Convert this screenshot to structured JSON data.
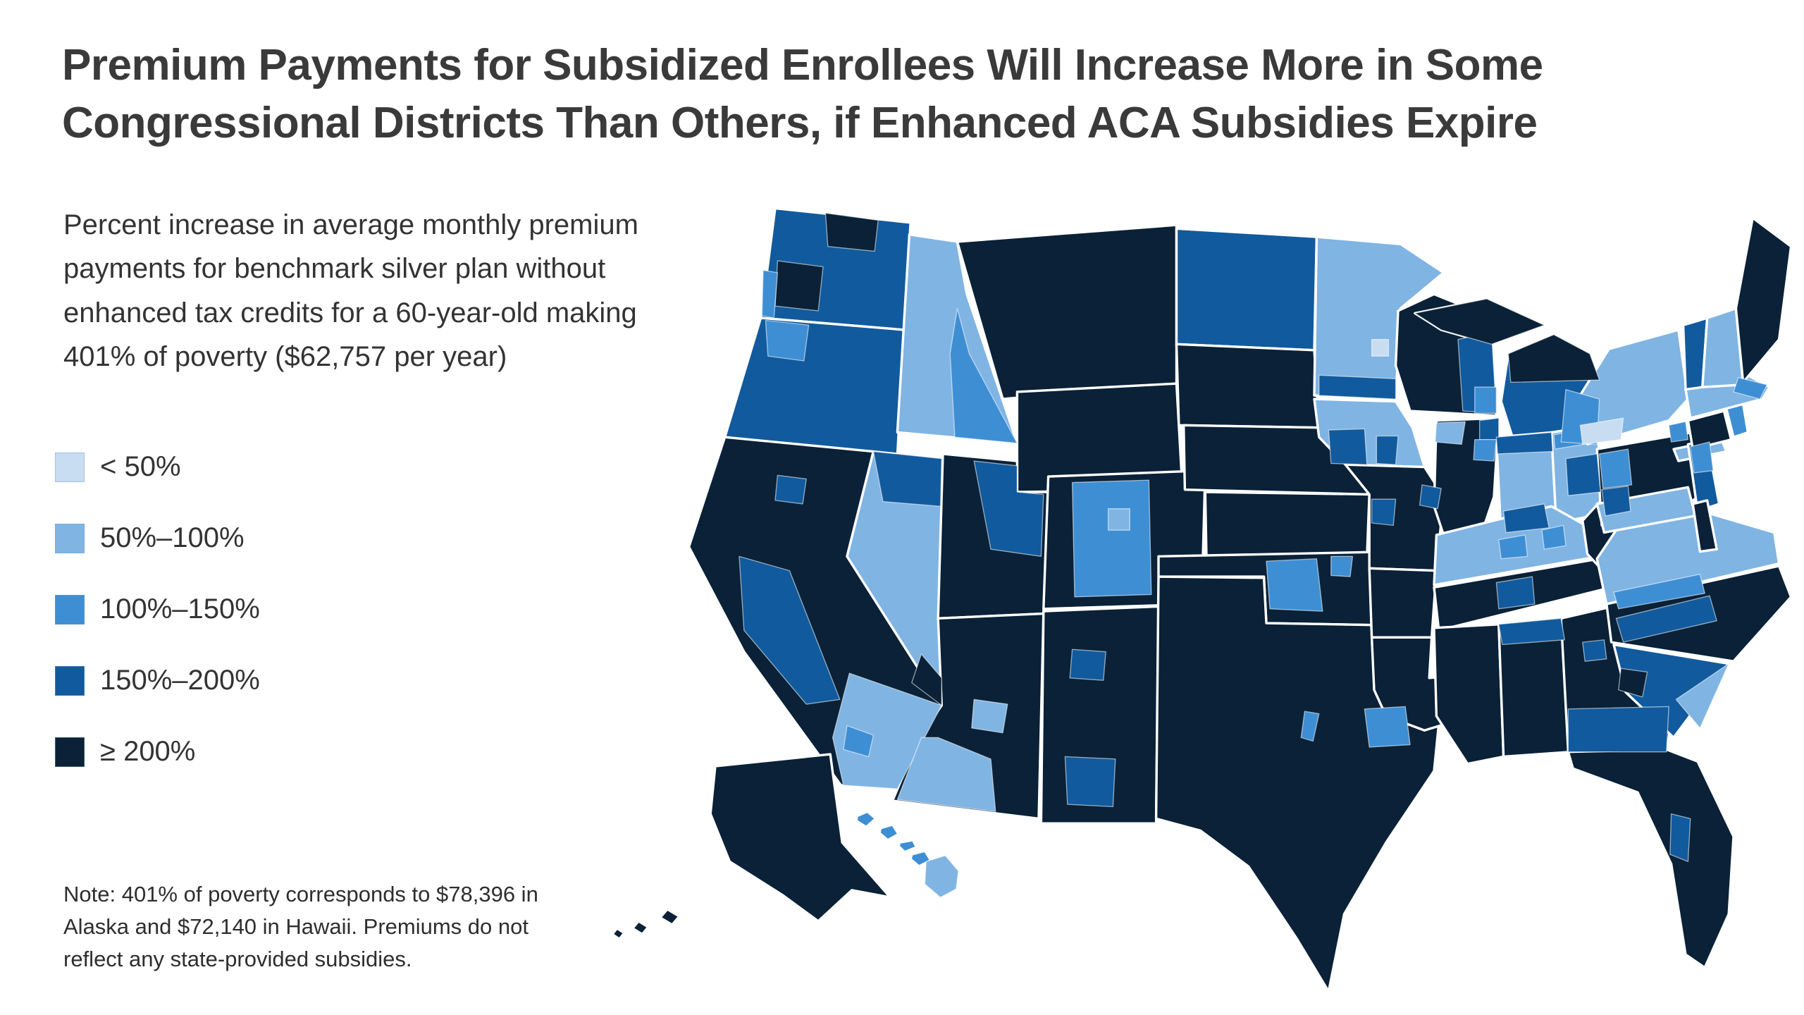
{
  "header": {
    "title_lines": [
      "Premium Payments for Subsidized Enrollees Will Increase More in Some",
      "Congressional Districts Than Others, if Enhanced ACA Subsidies Expire"
    ]
  },
  "subtitle": "Percent increase in average monthly premium payments for benchmark silver plan without enhanced tax credits for a 60-year-old making 401% of poverty ($62,757 per year)",
  "note": "Note: 401% of poverty corresponds to $78,396 in Alaska and $72,140 in Hawaii. Premiums do not reflect any state-provided subsidies.",
  "legend": {
    "items": [
      {
        "label": "< 50%",
        "category": "lt50"
      },
      {
        "label": "50%–100%",
        "category": "50-100"
      },
      {
        "label": "100%–150%",
        "category": "100-150"
      },
      {
        "label": "150%–200%",
        "category": "150-200"
      },
      {
        "label": "≥ 200%",
        "category": "gte200"
      }
    ]
  },
  "map": {
    "category_colors": {
      "lt50": "#c8ddf2",
      "50-100": "#80b4e3",
      "100-150": "#3e8ed4",
      "150-200": "#115a9d",
      "gte200": "#0a2137"
    },
    "states": [
      {
        "abbr": "WA",
        "name": "Washington",
        "category": "150-200"
      },
      {
        "abbr": "OR",
        "name": "Oregon",
        "category": "150-200"
      },
      {
        "abbr": "CA",
        "name": "California",
        "category": "gte200"
      },
      {
        "abbr": "NV",
        "name": "Nevada",
        "category": "50-100"
      },
      {
        "abbr": "ID",
        "name": "Idaho",
        "category": "50-100"
      },
      {
        "abbr": "MT",
        "name": "Montana",
        "category": "gte200"
      },
      {
        "abbr": "WY",
        "name": "Wyoming",
        "category": "gte200"
      },
      {
        "abbr": "UT",
        "name": "Utah",
        "category": "gte200"
      },
      {
        "abbr": "CO",
        "name": "Colorado",
        "category": "gte200"
      },
      {
        "abbr": "AZ",
        "name": "Arizona",
        "category": "gte200"
      },
      {
        "abbr": "NM",
        "name": "New Mexico",
        "category": "gte200"
      },
      {
        "abbr": "ND",
        "name": "North Dakota",
        "category": "150-200"
      },
      {
        "abbr": "SD",
        "name": "South Dakota",
        "category": "gte200"
      },
      {
        "abbr": "NE",
        "name": "Nebraska",
        "category": "gte200"
      },
      {
        "abbr": "KS",
        "name": "Kansas",
        "category": "gte200"
      },
      {
        "abbr": "OK",
        "name": "Oklahoma",
        "category": "gte200"
      },
      {
        "abbr": "TX",
        "name": "Texas",
        "category": "gte200"
      },
      {
        "abbr": "MN",
        "name": "Minnesota",
        "category": "50-100"
      },
      {
        "abbr": "IA",
        "name": "Iowa",
        "category": "50-100"
      },
      {
        "abbr": "MO",
        "name": "Missouri",
        "category": "gte200"
      },
      {
        "abbr": "AR",
        "name": "Arkansas",
        "category": "gte200"
      },
      {
        "abbr": "LA",
        "name": "Louisiana",
        "category": "gte200"
      },
      {
        "abbr": "WI",
        "name": "Wisconsin",
        "category": "gte200"
      },
      {
        "abbr": "IL",
        "name": "Illinois",
        "category": "gte200"
      },
      {
        "abbr": "MI",
        "name": "Michigan",
        "category": "150-200"
      },
      {
        "abbr": "IN",
        "name": "Indiana",
        "category": "50-100"
      },
      {
        "abbr": "OH",
        "name": "Ohio",
        "category": "50-100"
      },
      {
        "abbr": "KY",
        "name": "Kentucky",
        "category": "50-100"
      },
      {
        "abbr": "TN",
        "name": "Tennessee",
        "category": "gte200"
      },
      {
        "abbr": "MS",
        "name": "Mississippi",
        "category": "gte200"
      },
      {
        "abbr": "AL",
        "name": "Alabama",
        "category": "gte200"
      },
      {
        "abbr": "GA",
        "name": "Georgia",
        "category": "gte200"
      },
      {
        "abbr": "FL",
        "name": "Florida",
        "category": "gte200"
      },
      {
        "abbr": "WV",
        "name": "West Virginia",
        "category": "gte200"
      },
      {
        "abbr": "VA",
        "name": "Virginia",
        "category": "50-100"
      },
      {
        "abbr": "NC",
        "name": "North Carolina",
        "category": "gte200"
      },
      {
        "abbr": "SC",
        "name": "South Carolina",
        "category": "150-200"
      },
      {
        "abbr": "PA",
        "name": "Pennsylvania",
        "category": "gte200"
      },
      {
        "abbr": "NY",
        "name": "New York",
        "category": "50-100"
      },
      {
        "abbr": "NJ",
        "name": "New Jersey",
        "category": "150-200"
      },
      {
        "abbr": "MD",
        "name": "Maryland",
        "category": "50-100"
      },
      {
        "abbr": "DE",
        "name": "Delaware",
        "category": "gte200"
      },
      {
        "abbr": "CT",
        "name": "Connecticut",
        "category": "gte200"
      },
      {
        "abbr": "RI",
        "name": "Rhode Island",
        "category": "100-150"
      },
      {
        "abbr": "MA",
        "name": "Massachusetts",
        "category": "50-100"
      },
      {
        "abbr": "VT",
        "name": "Vermont",
        "category": "150-200"
      },
      {
        "abbr": "NH",
        "name": "New Hampshire",
        "category": "50-100"
      },
      {
        "abbr": "ME",
        "name": "Maine",
        "category": "gte200"
      },
      {
        "abbr": "AK",
        "name": "Alaska",
        "category": "gte200"
      },
      {
        "abbr": "HI",
        "name": "Hawaii",
        "category": "100-150"
      }
    ],
    "district_overlays": [
      {
        "id": "wa-north",
        "state": "WA",
        "category": "gte200"
      },
      {
        "id": "wa-west",
        "state": "WA",
        "category": "gte200"
      },
      {
        "id": "wa-coast",
        "state": "WA",
        "category": "100-150"
      },
      {
        "id": "or-nw",
        "state": "OR",
        "category": "100-150"
      },
      {
        "id": "ca-coast",
        "state": "CA",
        "category": "150-200"
      },
      {
        "id": "ca-sac",
        "state": "CA",
        "category": "150-200"
      },
      {
        "id": "ca-socal",
        "state": "CA",
        "category": "50-100"
      },
      {
        "id": "ca-la",
        "state": "CA",
        "category": "100-150"
      },
      {
        "id": "nv-north",
        "state": "NV",
        "category": "150-200"
      },
      {
        "id": "nv-south",
        "state": "NV",
        "category": "gte200"
      },
      {
        "id": "id-east",
        "state": "ID",
        "category": "100-150"
      },
      {
        "id": "ut-ne",
        "state": "UT",
        "category": "150-200"
      },
      {
        "id": "co-central",
        "state": "CO",
        "category": "100-150"
      },
      {
        "id": "co-denver",
        "state": "CO",
        "category": "50-100"
      },
      {
        "id": "az-sw",
        "state": "AZ",
        "category": "50-100"
      },
      {
        "id": "az-phx",
        "state": "AZ",
        "category": "50-100"
      },
      {
        "id": "nm-abq",
        "state": "NM",
        "category": "150-200"
      },
      {
        "id": "nm-south",
        "state": "NM",
        "category": "150-200"
      },
      {
        "id": "ok-central",
        "state": "OK",
        "category": "100-150"
      },
      {
        "id": "ok-ne",
        "state": "OK",
        "category": "100-150"
      },
      {
        "id": "tx-houston",
        "state": "TX",
        "category": "100-150"
      },
      {
        "id": "tx-austin",
        "state": "TX",
        "category": "100-150"
      },
      {
        "id": "mn-south",
        "state": "MN",
        "category": "150-200"
      },
      {
        "id": "mn-twincities",
        "state": "MN",
        "category": "lt50"
      },
      {
        "id": "ia-central",
        "state": "IA",
        "category": "150-200"
      },
      {
        "id": "ia-east",
        "state": "IA",
        "category": "150-200"
      },
      {
        "id": "mo-kc",
        "state": "MO",
        "category": "150-200"
      },
      {
        "id": "mo-stl",
        "state": "MO",
        "category": "150-200"
      },
      {
        "id": "wi-east",
        "state": "WI",
        "category": "150-200"
      },
      {
        "id": "wi-se",
        "state": "WI",
        "category": "100-150"
      },
      {
        "id": "il-nw",
        "state": "IL",
        "category": "50-100"
      },
      {
        "id": "il-chicago1",
        "state": "IL",
        "category": "150-200"
      },
      {
        "id": "il-chicago2",
        "state": "IL",
        "category": "100-150"
      },
      {
        "id": "in-north",
        "state": "IN",
        "category": "150-200"
      },
      {
        "id": "in-south",
        "state": "IN",
        "category": "150-200"
      },
      {
        "id": "oh-central",
        "state": "OH",
        "category": "150-200"
      },
      {
        "id": "oh-north",
        "state": "OH",
        "category": "100-150"
      },
      {
        "id": "mi-north",
        "state": "MI",
        "category": "gte200"
      },
      {
        "id": "mi-thumb",
        "state": "MI",
        "category": "100-150"
      },
      {
        "id": "ky-louisville",
        "state": "KY",
        "category": "100-150"
      },
      {
        "id": "ky-lexington",
        "state": "KY",
        "category": "100-150"
      },
      {
        "id": "tn-nashville",
        "state": "TN",
        "category": "150-200"
      },
      {
        "id": "al-north",
        "state": "AL",
        "category": "150-200"
      },
      {
        "id": "ga-south",
        "state": "GA",
        "category": "150-200"
      },
      {
        "id": "ga-atlanta",
        "state": "GA",
        "category": "150-200"
      },
      {
        "id": "fl-eastcoast",
        "state": "FL",
        "category": "150-200"
      },
      {
        "id": "sc-coast",
        "state": "SC",
        "category": "50-100"
      },
      {
        "id": "sc-west",
        "state": "SC",
        "category": "gte200"
      },
      {
        "id": "nc-central",
        "state": "NC",
        "category": "150-200"
      },
      {
        "id": "va-south",
        "state": "VA",
        "category": "100-150"
      },
      {
        "id": "pa-west",
        "state": "PA",
        "category": "100-150"
      },
      {
        "id": "pa-sw",
        "state": "PA",
        "category": "150-200"
      },
      {
        "id": "ny-southerntier",
        "state": "NY",
        "category": "lt50"
      },
      {
        "id": "ny-nyc",
        "state": "NY",
        "category": "100-150"
      },
      {
        "id": "nj-north",
        "state": "NJ",
        "category": "100-150"
      },
      {
        "id": "ma-cape",
        "state": "MA",
        "category": "100-150"
      },
      {
        "id": "hi-bigisland",
        "state": "HI",
        "category": "50-100"
      }
    ]
  }
}
